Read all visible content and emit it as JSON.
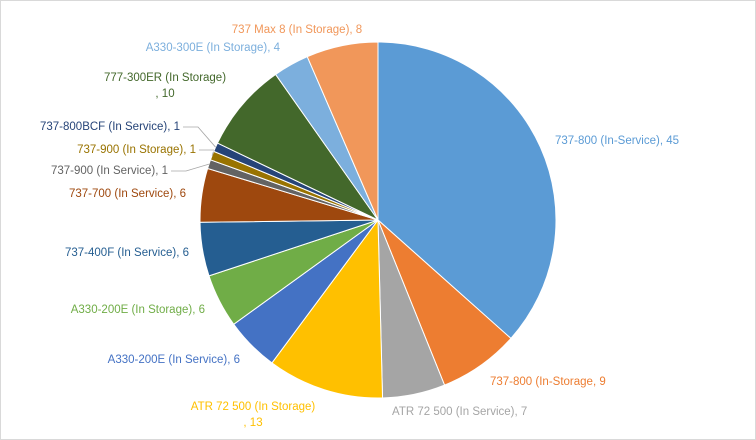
{
  "chart_data": {
    "type": "pie",
    "categories": [
      "737-800 (In-Service)",
      "737-800 (In-Storage",
      "ATR 72 500 (In Service)",
      "ATR 72 500 (In Storage)",
      "A330-200E (In Service)",
      "A330-200E (In Storage)",
      "737-400F (In Service)",
      "737-700 (In Service)",
      "737-900 (In Service)",
      "737-900 (In Storage)",
      "737-800BCF (In Service)",
      "777-300ER (In Storage)",
      "A330-300E (In Storage)",
      "737 Max 8 (In Storage)"
    ],
    "values": [
      45,
      9,
      7,
      13,
      6,
      6,
      6,
      6,
      1,
      1,
      1,
      10,
      4,
      8
    ],
    "value_labels": [
      ", 45",
      ", 9",
      ", 7",
      ", 13",
      ", 6",
      ", 6",
      ", 6",
      ", 6",
      ", 1",
      ", 1",
      ", 1",
      ", 10",
      ", 4",
      ", 8"
    ],
    "colors": [
      "#5b9bd5",
      "#ed7d31",
      "#a5a5a5",
      "#ffc000",
      "#4472c4",
      "#70ad47",
      "#255e91",
      "#9e480e",
      "#636363",
      "#997300",
      "#264478",
      "#43682b",
      "#7cafdd",
      "#f1975a"
    ]
  }
}
